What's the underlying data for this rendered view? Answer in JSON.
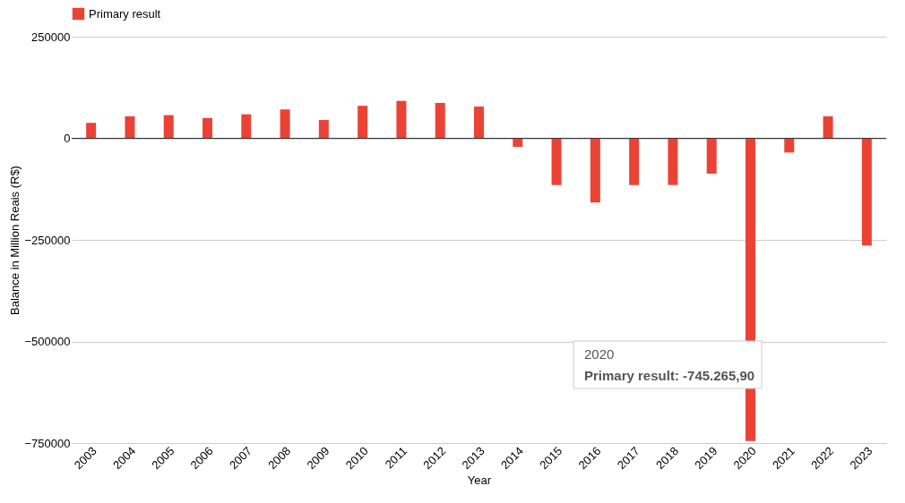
{
  "chart_data": {
    "type": "bar",
    "xlabel": "Year",
    "ylabel": "Balance in Million Reais (R$)",
    "categories": [
      "2003",
      "2004",
      "2005",
      "2006",
      "2007",
      "2008",
      "2009",
      "2010",
      "2011",
      "2012",
      "2013",
      "2014",
      "2015",
      "2016",
      "2017",
      "2018",
      "2019",
      "2020",
      "2021",
      "2022",
      "2023"
    ],
    "series": [
      {
        "name": "Primary result",
        "color": "#ea4335",
        "values": [
          38000,
          54000,
          57000,
          50000,
          59000,
          71000,
          45000,
          80000,
          92000,
          87000,
          78000,
          -21000,
          -115000,
          -158000,
          -115000,
          -115000,
          -87000,
          -745265.9,
          -35000,
          54000,
          -264000
        ]
      }
    ],
    "ylim": [
      -750000,
      250000
    ],
    "yticks": [
      -750000,
      -500000,
      -250000,
      0,
      250000
    ],
    "grid": "y",
    "legend": "top",
    "annotations": [
      "2020",
      "Primary result: -745.265,90"
    ]
  }
}
